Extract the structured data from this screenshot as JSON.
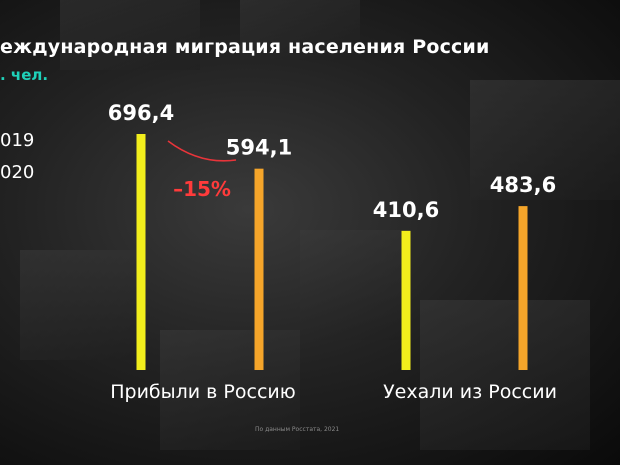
{
  "chart_data": {
    "type": "bar",
    "title": "еждународная миграция населения России",
    "subtitle": ". чел.",
    "categories": [
      "Прибыли в Россию",
      "Уехали из России"
    ],
    "series": [
      {
        "name": "019",
        "color": "#f2ee1c",
        "values": [
          696.4,
          410.6
        ],
        "labels": [
          "696,4",
          "410,6"
        ]
      },
      {
        "name": "020",
        "color": "#f5a52a",
        "values": [
          594.1,
          483.6
        ],
        "labels": [
          "594,1",
          "483,6"
        ]
      }
    ],
    "annotation": {
      "text": "–15%",
      "color": "#ff3b3b"
    },
    "ylim": [
      0,
      750
    ],
    "legend_position": "left",
    "grid": false,
    "source": "По данным Росстата, 2021"
  }
}
